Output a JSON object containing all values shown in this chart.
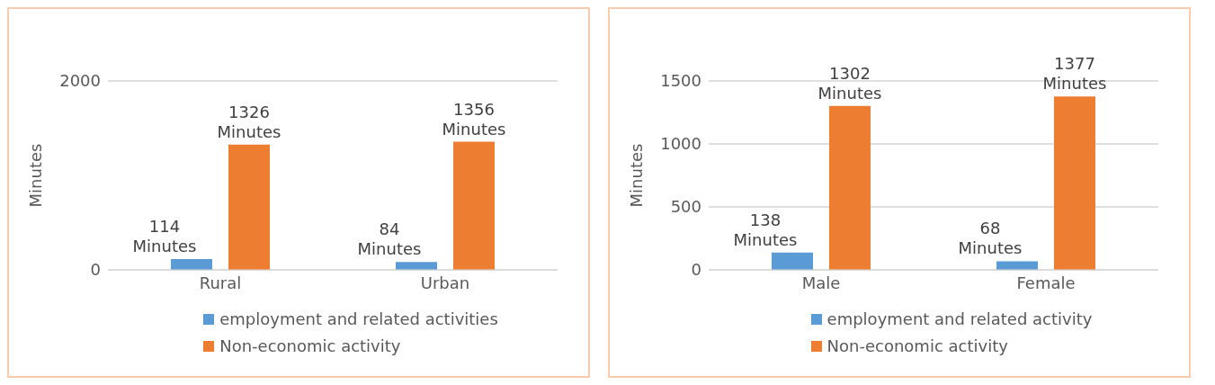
{
  "chart_data": [
    {
      "type": "bar",
      "ylabel": "Minutes",
      "categories": [
        "Rural",
        "Urban"
      ],
      "ylim": [
        0,
        2000
      ],
      "yticks": [
        0,
        2000
      ],
      "grid": "y",
      "legend": "bottom",
      "series": [
        {
          "name": "employment and related activities",
          "color": "#5b9bd5",
          "values": [
            114,
            84
          ],
          "value_labels": [
            "114 Minutes",
            "84 Minutes"
          ]
        },
        {
          "name": "Non-economic activity",
          "color": "#ed7d31",
          "values": [
            1326,
            1356
          ],
          "value_labels": [
            "1326 Minutes",
            "1356 Minutes"
          ]
        }
      ]
    },
    {
      "type": "bar",
      "ylabel": "Minutes",
      "categories": [
        "Male",
        "Female"
      ],
      "ylim": [
        0,
        1500
      ],
      "yticks": [
        0,
        500,
        1000,
        1500
      ],
      "grid": "y",
      "legend": "bottom",
      "series": [
        {
          "name": "employment and related activity",
          "color": "#5b9bd5",
          "values": [
            138,
            68
          ],
          "value_labels": [
            "138 Minutes",
            "68 Minutes"
          ]
        },
        {
          "name": "Non-economic activity",
          "color": "#ed7d31",
          "values": [
            1302,
            1377
          ],
          "value_labels": [
            "1302 Minutes",
            "1377 Minutes"
          ]
        }
      ]
    }
  ]
}
